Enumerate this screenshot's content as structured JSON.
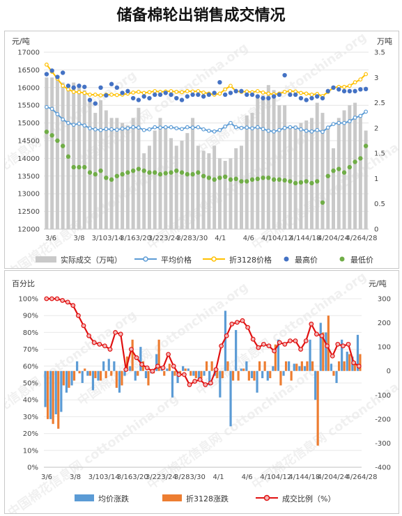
{
  "page_title": "储备棉轮出销售成交情况",
  "charts": [
    {
      "legend": {
        "actual": "实际成交（万吨）",
        "avg": "平均价格",
        "zhe": "折3128价格",
        "high": "最高价",
        "low": "最低价"
      },
      "left_unit": "元/吨",
      "right_unit": "万吨"
    },
    {
      "legend": {
        "avg_chg": "均价涨跌",
        "zhe_chg": "折3128涨跌",
        "ratio": "成交比例（%）"
      },
      "left_unit": "百分比",
      "right_unit": "元/吨"
    }
  ],
  "watermark": "中国棉花信息网 cottonchina.org",
  "colors": {
    "actual": "#c9c9c9",
    "avg": "#5b9bd5",
    "zhe": "#ffc000",
    "high": "#4472c4",
    "low": "#70ad47",
    "avg_chg": "#5b9bd5",
    "zhe_chg": "#ed7d31",
    "ratio": "#e01010"
  },
  "chart_data": [
    {
      "type": "bar",
      "title": "储备棉轮出销售成交情况",
      "x_tick_labels": [
        "3/6",
        "3/8",
        "3/10",
        "3/13",
        "3/14",
        "3/16",
        "3/20",
        "3/22",
        "3/24",
        "3/28",
        "3/30",
        "4/1",
        "4/6",
        "4/10",
        "4/12",
        "4/14",
        "4/18",
        "4/20",
        "4/24",
        "4/26",
        "4/28"
      ],
      "x_tick_raw": [
        "3/6",
        "3/8",
        "3/103/14",
        "3/163/20",
        "3/223/24",
        "3/283/30",
        "4/1",
        "4/6",
        "4/104/12",
        "4/144/18",
        "4/204/24",
        "4/264/28"
      ],
      "n_points": 60,
      "left_axis": {
        "range": [
          12000,
          17000
        ],
        "ticks": [
          12000,
          12500,
          13000,
          13500,
          14000,
          14500,
          15000,
          15500,
          16000,
          16500,
          17000
        ]
      },
      "right_axis": {
        "range": [
          0,
          3.5
        ],
        "ticks": [
          0,
          0.5,
          1,
          1.5,
          2,
          2.5,
          3,
          3.5
        ]
      },
      "series": [
        {
          "name": "实际成交（万吨）",
          "type": "bar",
          "axis": "right",
          "values": [
            3.0,
            3.0,
            2.95,
            2.9,
            2.8,
            2.9,
            2.85,
            2.75,
            2.55,
            2.3,
            2.55,
            2.35,
            2.2,
            2.2,
            2.1,
            2.05,
            2.2,
            2.4,
            1.5,
            1.65,
            1.95,
            2.2,
            2.0,
            1.8,
            1.65,
            1.75,
            1.9,
            2.2,
            1.65,
            1.55,
            1.5,
            1.65,
            1.4,
            1.35,
            1.4,
            1.6,
            1.65,
            2.25,
            2.3,
            2.6,
            2.65,
            2.85,
            2.75,
            2.45,
            2.45,
            2.0,
            2.05,
            2.1,
            2.15,
            2.2,
            2.5,
            2.3,
            2.0,
            1.6,
            2.2,
            2.35,
            2.45,
            2.5,
            2.25,
            1.95
          ]
        },
        {
          "name": "平均价格",
          "type": "line",
          "axis": "left",
          "values": [
            15450,
            15400,
            15250,
            15100,
            15000,
            14950,
            14980,
            14930,
            14850,
            14820,
            14800,
            14830,
            14820,
            14810,
            14840,
            14850,
            14880,
            14870,
            14800,
            14820,
            14880,
            14870,
            14880,
            14880,
            14850,
            14830,
            14880,
            14870,
            14880,
            14820,
            14780,
            14760,
            14800,
            14900,
            15000,
            14880,
            14860,
            14870,
            14850,
            14880,
            14830,
            14780,
            14760,
            14800,
            14860,
            14880,
            14870,
            14820,
            14780,
            14760,
            14800,
            14750,
            14870,
            14970,
            15000,
            15000,
            15050,
            15150,
            15200,
            15320
          ]
        },
        {
          "name": "折3128价格",
          "type": "line",
          "axis": "left",
          "values": [
            16650,
            16450,
            16250,
            16050,
            15950,
            15880,
            15870,
            15850,
            15800,
            15800,
            15780,
            15800,
            15800,
            15790,
            15800,
            15830,
            15860,
            15880,
            15850,
            15870,
            15900,
            15880,
            15890,
            15900,
            15880,
            15870,
            15900,
            15890,
            15900,
            15860,
            15830,
            15800,
            15830,
            15950,
            16050,
            15900,
            15880,
            15890,
            15870,
            15900,
            15860,
            15830,
            15810,
            15830,
            15880,
            15900,
            15890,
            15850,
            15830,
            15800,
            15820,
            15760,
            15880,
            16000,
            16020,
            16020,
            16050,
            16150,
            16230,
            16380
          ]
        },
        {
          "name": "最高价",
          "type": "scatter",
          "axis": "left",
          "values": [
            16380,
            16480,
            16300,
            16420,
            16050,
            16000,
            16050,
            16020,
            15650,
            15550,
            16000,
            15780,
            16100,
            16000,
            15850,
            15900,
            15700,
            15650,
            15750,
            15700,
            15800,
            15800,
            15850,
            15800,
            15700,
            15650,
            15750,
            15800,
            15800,
            15750,
            15800,
            15850,
            16150,
            15800,
            15850,
            15900,
            15900,
            15800,
            15800,
            15750,
            15700,
            15700,
            15750,
            15800,
            16350,
            15800,
            15800,
            15700,
            15650,
            15700,
            15750,
            15700,
            15900,
            16000,
            15950,
            15900,
            15900,
            15900,
            15950,
            15960
          ]
        },
        {
          "name": "最低价",
          "type": "scatter",
          "axis": "left",
          "values": [
            14750,
            14650,
            14500,
            14350,
            14050,
            13750,
            13750,
            13750,
            13600,
            13550,
            13650,
            13450,
            13400,
            13500,
            13550,
            13600,
            13650,
            13700,
            13650,
            13600,
            13600,
            13550,
            13580,
            13600,
            13650,
            13600,
            13550,
            13550,
            13600,
            13500,
            13450,
            13400,
            13450,
            13480,
            13400,
            13420,
            13350,
            13350,
            13400,
            13420,
            13450,
            13450,
            13400,
            13400,
            13380,
            13350,
            13300,
            13320,
            13350,
            13300,
            13350,
            12750,
            13500,
            13650,
            13700,
            13600,
            13750,
            13900,
            14000,
            14350
          ]
        }
      ]
    },
    {
      "type": "bar",
      "x_tick_labels": [
        "3/6",
        "3/8",
        "3/10",
        "3/13",
        "3/14",
        "3/16",
        "3/20",
        "3/22",
        "3/24",
        "3/28",
        "3/30",
        "4/1",
        "4/6",
        "4/10",
        "4/12",
        "4/14",
        "4/18",
        "4/20",
        "4/24",
        "4/26",
        "4/28"
      ],
      "x_tick_raw": [
        "3/6",
        "3/8",
        "3/103/14",
        "3/163/20",
        "3/223/24",
        "3/283/30",
        "4/1",
        "4/6",
        "4/104/12",
        "4/144/18",
        "4/204/24",
        "4/264/28"
      ],
      "n_points": 60,
      "left_axis": {
        "range": [
          0,
          100
        ],
        "ticks": [
          "0%",
          "10%",
          "20%",
          "30%",
          "40%",
          "50%",
          "60%",
          "70%",
          "80%",
          "90%",
          "100%"
        ]
      },
      "right_axis": {
        "range": [
          -400,
          300
        ],
        "ticks": [
          -400,
          -300,
          -200,
          -100,
          0,
          100,
          200,
          300
        ]
      },
      "series": [
        {
          "name": "均价涨跌",
          "type": "bar",
          "axis": "right",
          "values": [
            -150,
            -200,
            -180,
            -170,
            -90,
            -60,
            40,
            -50,
            -20,
            -80,
            -40,
            40,
            50,
            40,
            -90,
            -20,
            20,
            -40,
            100,
            -30,
            -10,
            70,
            20,
            10,
            -110,
            -50,
            20,
            10,
            -20,
            -40,
            -20,
            -60,
            -20,
            -110,
            250,
            -230,
            170,
            10,
            40,
            -30,
            -90,
            -30,
            -40,
            20,
            130,
            -20,
            40,
            30,
            20,
            20,
            130,
            -120,
            200,
            160,
            30,
            -50,
            130,
            80,
            60,
            150
          ]
        },
        {
          "name": "折3128涨跌",
          "type": "bar",
          "axis": "right",
          "values": [
            -200,
            -220,
            -240,
            -60,
            -70,
            -40,
            -10,
            10,
            -20,
            -30,
            -40,
            -30,
            -20,
            -70,
            -60,
            60,
            130,
            -20,
            40,
            -60,
            -10,
            130,
            -20,
            30,
            -20,
            -20,
            10,
            -20,
            -30,
            -30,
            40,
            40,
            -30,
            -30,
            40,
            -40,
            -40,
            10,
            -40,
            -40,
            40,
            40,
            -30,
            110,
            -60,
            40,
            -40,
            30,
            40,
            40,
            40,
            -310,
            160,
            230,
            -20,
            40,
            40,
            70,
            40,
            70
          ]
        },
        {
          "name": "成交比例（%）",
          "type": "line",
          "axis": "left",
          "values": [
            100,
            100,
            100,
            99,
            98,
            96,
            90,
            84,
            78,
            74,
            73,
            72,
            70,
            80,
            79,
            58,
            70,
            65,
            61,
            59,
            57,
            60,
            59,
            67,
            60,
            55,
            55,
            49,
            51,
            52,
            49,
            50,
            58,
            72,
            78,
            85,
            86,
            87,
            83,
            76,
            71,
            73,
            72,
            69,
            74,
            73,
            75,
            75,
            70,
            75,
            85,
            79,
            78,
            72,
            66,
            73,
            72,
            73,
            62,
            60
          ]
        }
      ]
    }
  ]
}
